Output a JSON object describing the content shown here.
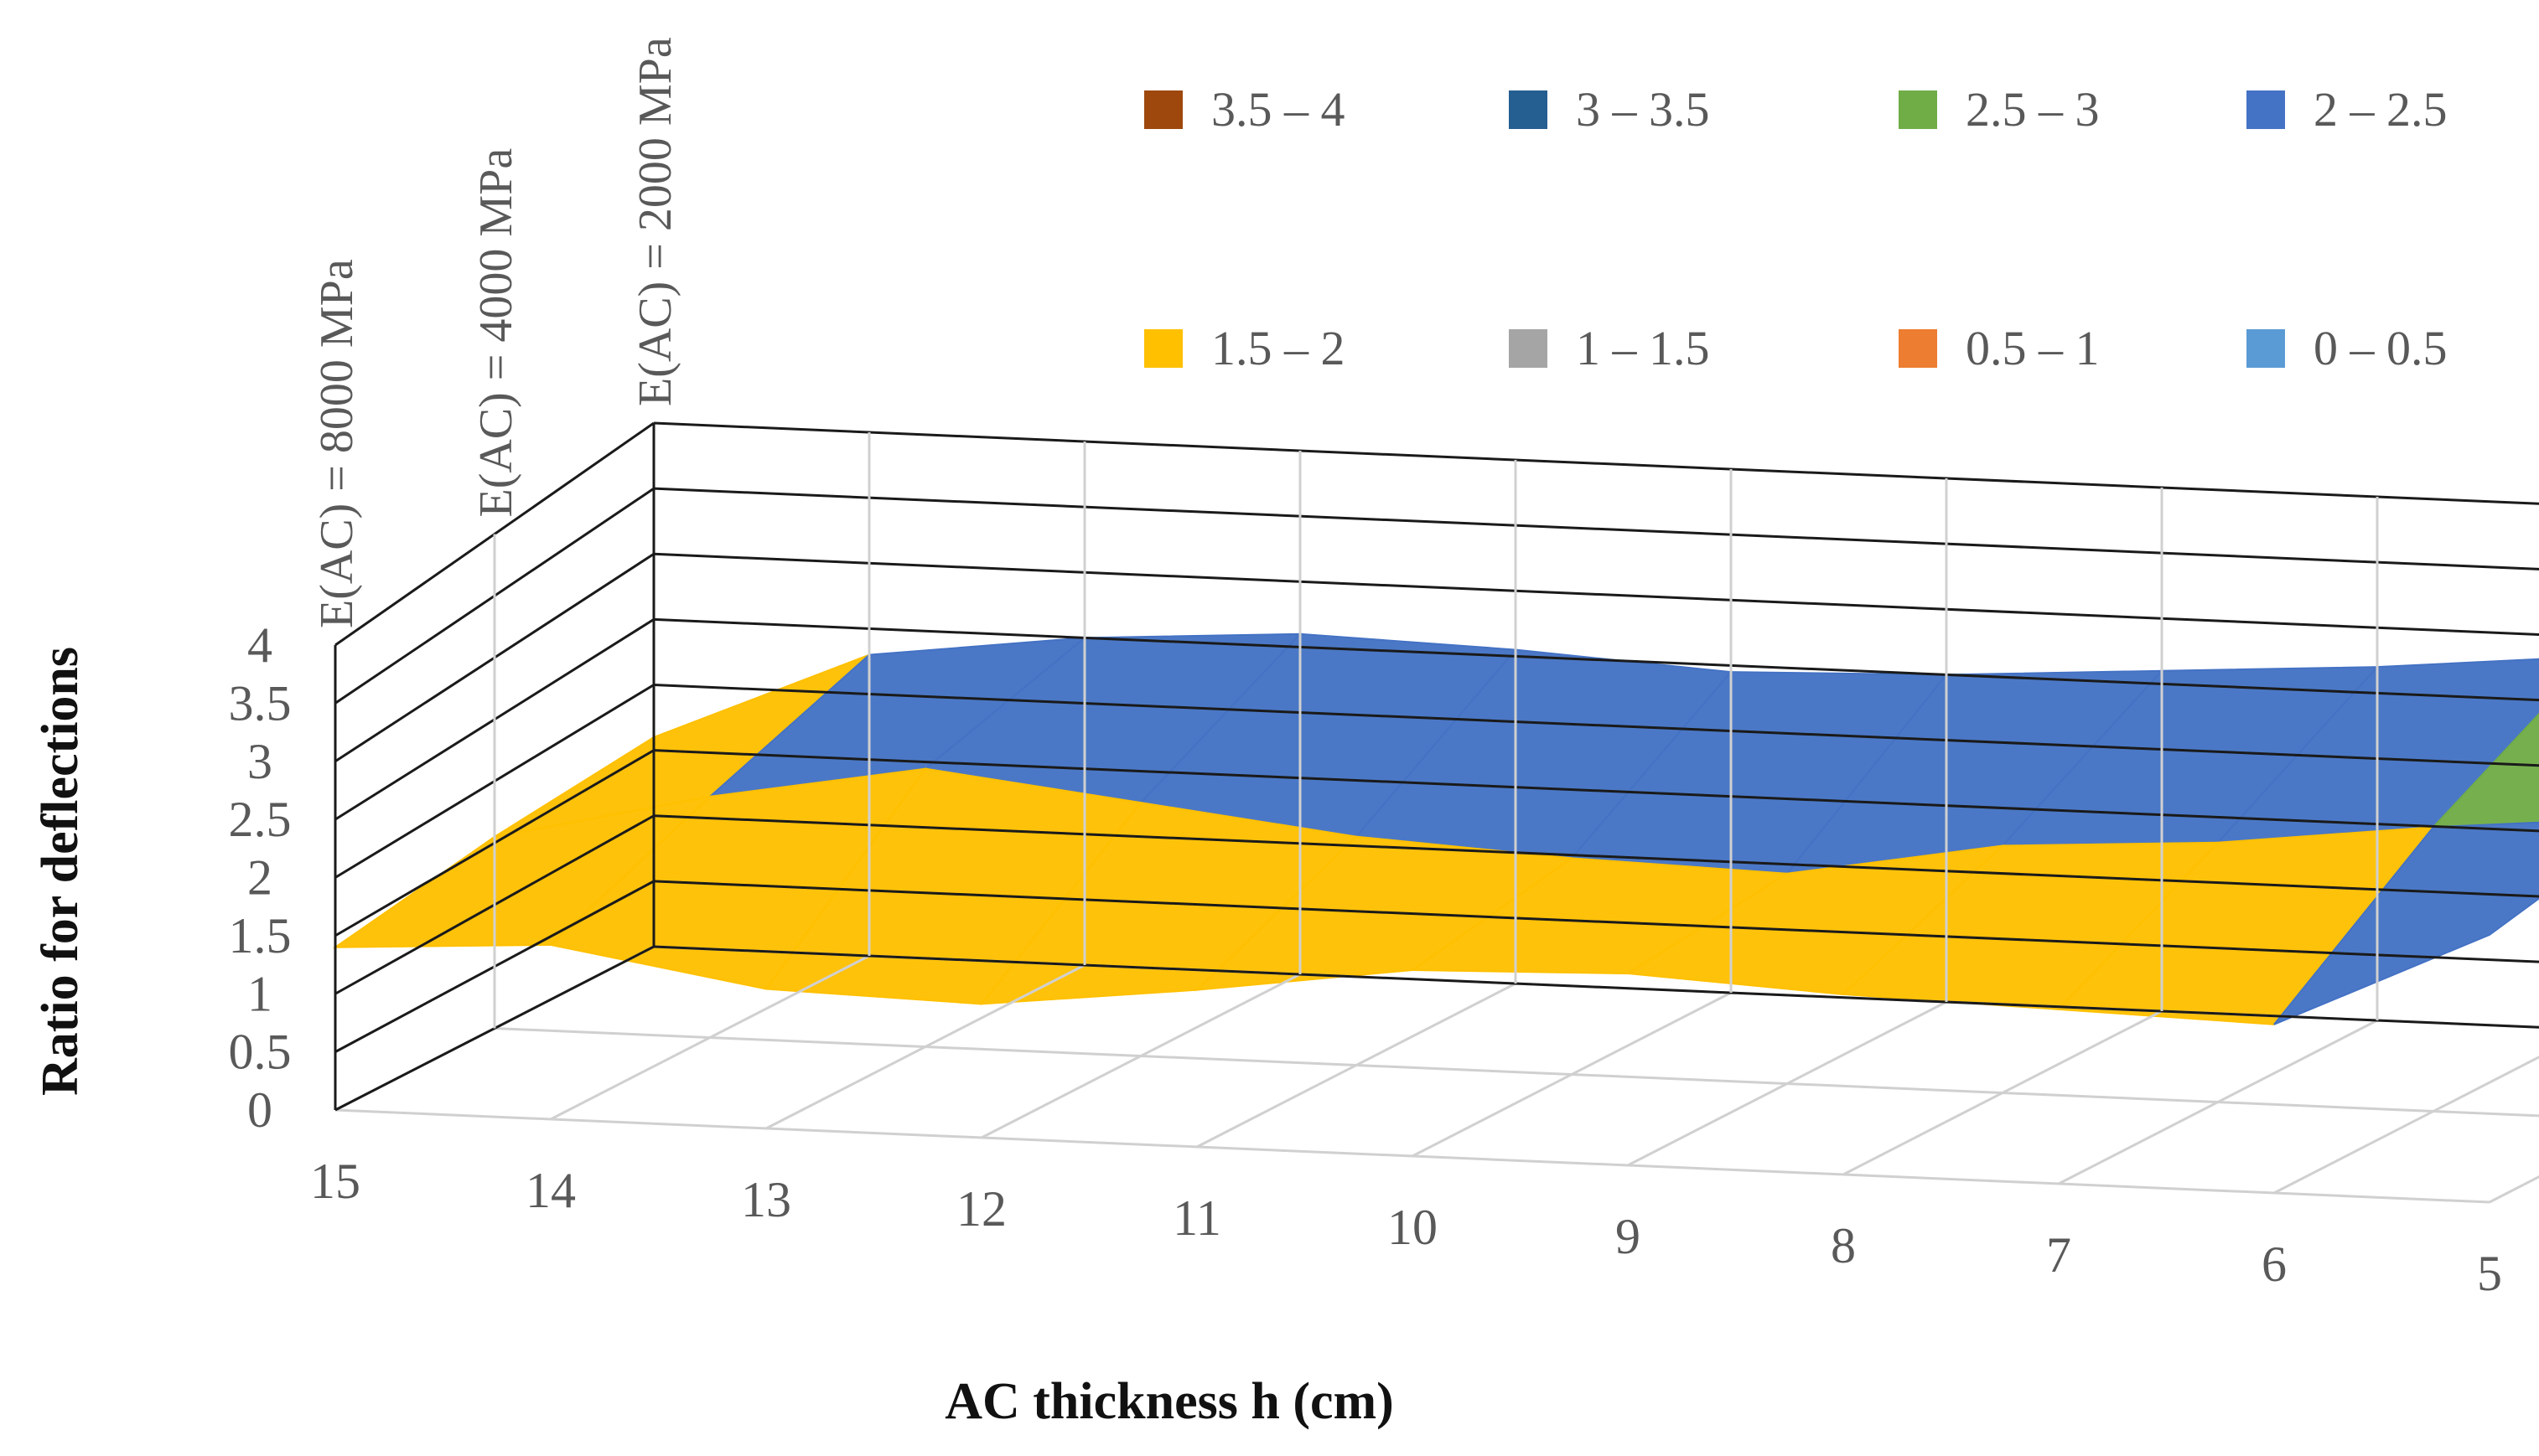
{
  "chart_data": {
    "type": "surface",
    "title": "",
    "xlabel": "AC thickness h (cm)",
    "ylabel": "Ratio for deflections",
    "zlim": [
      0,
      4
    ],
    "z_ticks": [
      "0",
      "0.5",
      "1",
      "1.5",
      "2",
      "2.5",
      "3",
      "3.5",
      "4"
    ],
    "x": [
      15,
      14,
      13,
      12,
      11,
      10,
      9,
      8,
      7,
      6,
      5
    ],
    "x_tick_labels": [
      "15",
      "14",
      "13",
      "12",
      "11",
      "10",
      "9",
      "8",
      "7",
      "6",
      "5"
    ],
    "series": [
      {
        "name": "E(AC) = 8000 MPa",
        "values": [
          1.4,
          1.5,
          1.2,
          1.15,
          1.35,
          1.6,
          1.65,
          1.55,
          1.5,
          1.45,
          2.3
        ]
      },
      {
        "name": "E(AC) = 4000 MPa",
        "values": [
          1.55,
          1.95,
          2.25,
          2.05,
          1.85,
          1.75,
          1.7,
          2.0,
          2.1,
          2.3,
          2.45
        ]
      },
      {
        "name": "E(AC) = 2000 MPa",
        "values": [
          1.6,
          2.3,
          2.5,
          2.6,
          2.55,
          2.45,
          2.5,
          2.6,
          2.7,
          2.85,
          3.1
        ]
      }
    ],
    "color_bands": [
      {
        "label": "3.5 – 4",
        "range": [
          3.5,
          4
        ],
        "color": "#9E480E"
      },
      {
        "label": "3 – 3.5",
        "range": [
          3,
          3.5
        ],
        "color": "#255E91"
      },
      {
        "label": "2.5 – 3",
        "range": [
          2.5,
          3
        ],
        "color": "#70AD47"
      },
      {
        "label": "2 – 2.5",
        "range": [
          2,
          2.5
        ],
        "color": "#4472C4"
      },
      {
        "label": "1.5 – 2",
        "range": [
          1.5,
          2
        ],
        "color": "#FFC000"
      },
      {
        "label": "1 – 1.5",
        "range": [
          1,
          1.5
        ],
        "color": "#A5A5A5"
      },
      {
        "label": "0.5 – 1",
        "range": [
          0.5,
          1
        ],
        "color": "#ED7D31"
      },
      {
        "label": "0 – 0.5",
        "range": [
          0,
          0.5
        ],
        "color": "#5B9BD5"
      }
    ],
    "legend_position": "top-right",
    "grid": true
  }
}
